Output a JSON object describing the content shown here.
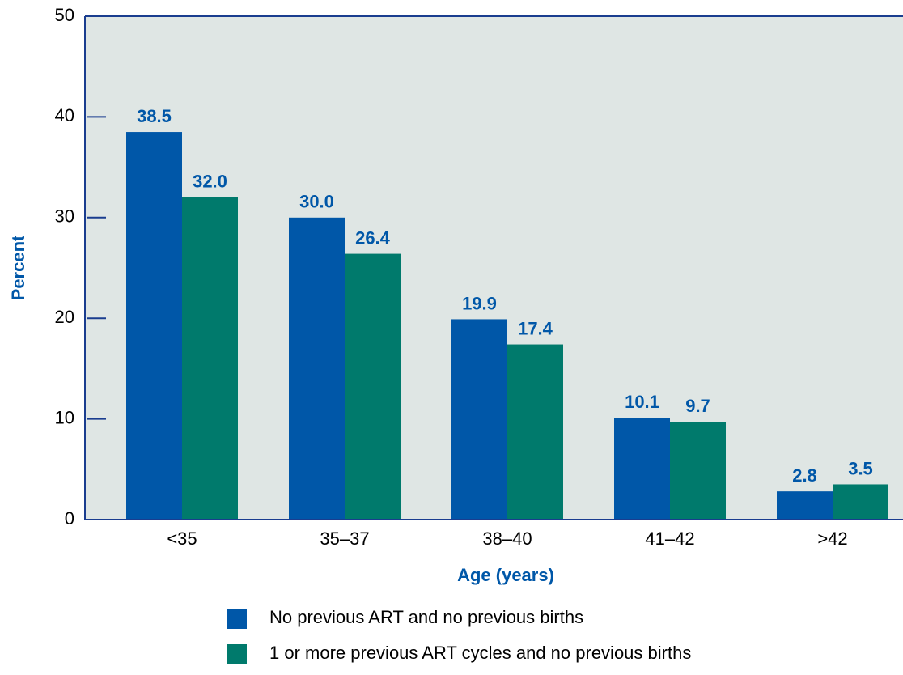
{
  "chart_data": {
    "type": "bar",
    "xlabel": "Age (years)",
    "ylabel": "Percent",
    "categories": [
      "<35",
      "35–37",
      "38–40",
      "41–42",
      ">42"
    ],
    "series": [
      {
        "name": "No previous ART and no previous births",
        "color": "#0057a8",
        "values": [
          38.5,
          30,
          19.9,
          10.1,
          2.8
        ],
        "value_labels": [
          "38.5",
          "30.0",
          "19.9",
          "10.1",
          "2.8"
        ]
      },
      {
        "name": "1 or more previous ART cycles and no previous births",
        "color": "#007a6c",
        "values": [
          32,
          26.4,
          17.4,
          9.7,
          3.5
        ],
        "value_labels": [
          "32.0",
          "26.4",
          "17.4",
          "9.7",
          "3.5"
        ]
      }
    ],
    "ylim": [
      0,
      50
    ],
    "yticks": [
      0,
      10,
      20,
      30,
      40,
      50
    ]
  }
}
